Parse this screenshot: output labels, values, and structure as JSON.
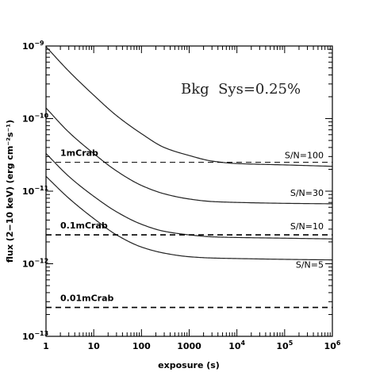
{
  "chart_data": {
    "type": "line",
    "title": "",
    "xlabel": "exposure (s)",
    "ylabel": "flux (2−10 keV) (erg cm⁻²s⁻¹)",
    "x_scale": "log",
    "y_scale": "log",
    "xlim": [
      1,
      1000000
    ],
    "ylim": [
      1e-13,
      1e-09
    ],
    "grid": false,
    "legend": "none",
    "x_ticks": [
      {
        "value": 1,
        "label": "1"
      },
      {
        "value": 10,
        "label": "10"
      },
      {
        "value": 100,
        "label": "100"
      },
      {
        "value": 1000,
        "label": "1000"
      },
      {
        "value": 10000,
        "base": "10",
        "exp": "4"
      },
      {
        "value": 100000,
        "base": "10",
        "exp": "5"
      },
      {
        "value": 1000000,
        "base": "10",
        "exp": "6"
      }
    ],
    "y_ticks": [
      {
        "value": 1e-13,
        "base": "10",
        "exp": "−13"
      },
      {
        "value": 1e-12,
        "base": "10",
        "exp": "−12"
      },
      {
        "value": 1e-11,
        "base": "10",
        "exp": "−11"
      },
      {
        "value": 1e-10,
        "base": "10",
        "exp": "−10"
      },
      {
        "value": 1e-09,
        "base": "10",
        "exp": "−9"
      }
    ],
    "annotation": "Bkg  Sys=0.25%",
    "series": [
      {
        "label": "S/N=100",
        "x": [
          1,
          3,
          10,
          30,
          100,
          300,
          1000,
          3000,
          10000,
          100000,
          1000000
        ],
        "y": [
          9.8e-10,
          4.5e-10,
          2.1e-10,
          1.1e-10,
          6.2e-11,
          4e-11,
          3.1e-11,
          2.6e-11,
          2.4e-11,
          2.3e-11,
          2.2e-11
        ]
      },
      {
        "label": "S/N=30",
        "x": [
          1,
          3,
          10,
          30,
          100,
          300,
          1000,
          3000,
          10000,
          100000,
          1000000
        ],
        "y": [
          1.4e-10,
          6.5e-11,
          3.3e-11,
          1.9e-11,
          1.2e-11,
          9.2e-12,
          7.8e-12,
          7.2e-12,
          7e-12,
          6.8e-12,
          6.7e-12
        ]
      },
      {
        "label": "S/N=10",
        "x": [
          1,
          3,
          10,
          30,
          100,
          300,
          1000,
          3000,
          10000,
          100000,
          1000000
        ],
        "y": [
          3.3e-11,
          1.6e-11,
          8.5e-12,
          5.2e-12,
          3.5e-12,
          2.8e-12,
          2.5e-12,
          2.35e-12,
          2.3e-12,
          2.25e-12,
          2.2e-12
        ]
      },
      {
        "label": "S/N=5",
        "x": [
          1,
          3,
          10,
          30,
          100,
          300,
          1000,
          3000,
          10000,
          100000,
          1000000
        ],
        "y": [
          1.6e-11,
          8e-12,
          4.2e-12,
          2.5e-12,
          1.7e-12,
          1.4e-12,
          1.25e-12,
          1.2e-12,
          1.18e-12,
          1.15e-12,
          1.13e-12
        ]
      }
    ],
    "reference_lines": [
      {
        "label": "1mCrab",
        "y": 2.5e-11
      },
      {
        "label": "0.1mCrab",
        "y": 2.5e-12
      },
      {
        "label": "0.01mCrab",
        "y": 2.5e-13
      }
    ]
  }
}
